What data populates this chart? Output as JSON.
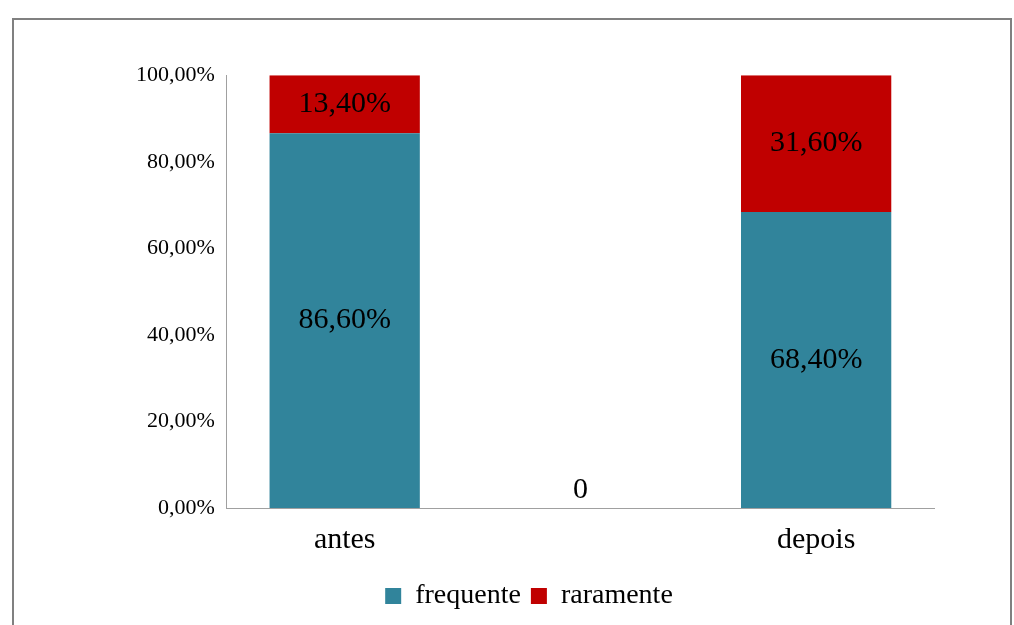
{
  "chart_data": {
    "type": "bar",
    "stacked": true,
    "categories": [
      "antes",
      null,
      "depois"
    ],
    "series": [
      {
        "name": "frequente",
        "color": "#31849b",
        "values": [
          86.6,
          null,
          68.4
        ],
        "value_labels": [
          "86,60%",
          null,
          "68,40%"
        ]
      },
      {
        "name": "raramente",
        "color": "#c00000",
        "values": [
          13.4,
          0,
          31.6
        ],
        "value_labels": [
          "13,40%",
          "0",
          "31,60%"
        ]
      }
    ],
    "ylim": [
      0,
      100
    ],
    "yticks": [
      {
        "value": 0,
        "label": "0,00%"
      },
      {
        "value": 20,
        "label": "20,00%"
      },
      {
        "value": 40,
        "label": "40,00%"
      },
      {
        "value": 60,
        "label": "60,00%"
      },
      {
        "value": 80,
        "label": "80,00%"
      },
      {
        "value": 100,
        "label": "100,00%"
      }
    ],
    "grid": false,
    "legend": "bottom"
  }
}
